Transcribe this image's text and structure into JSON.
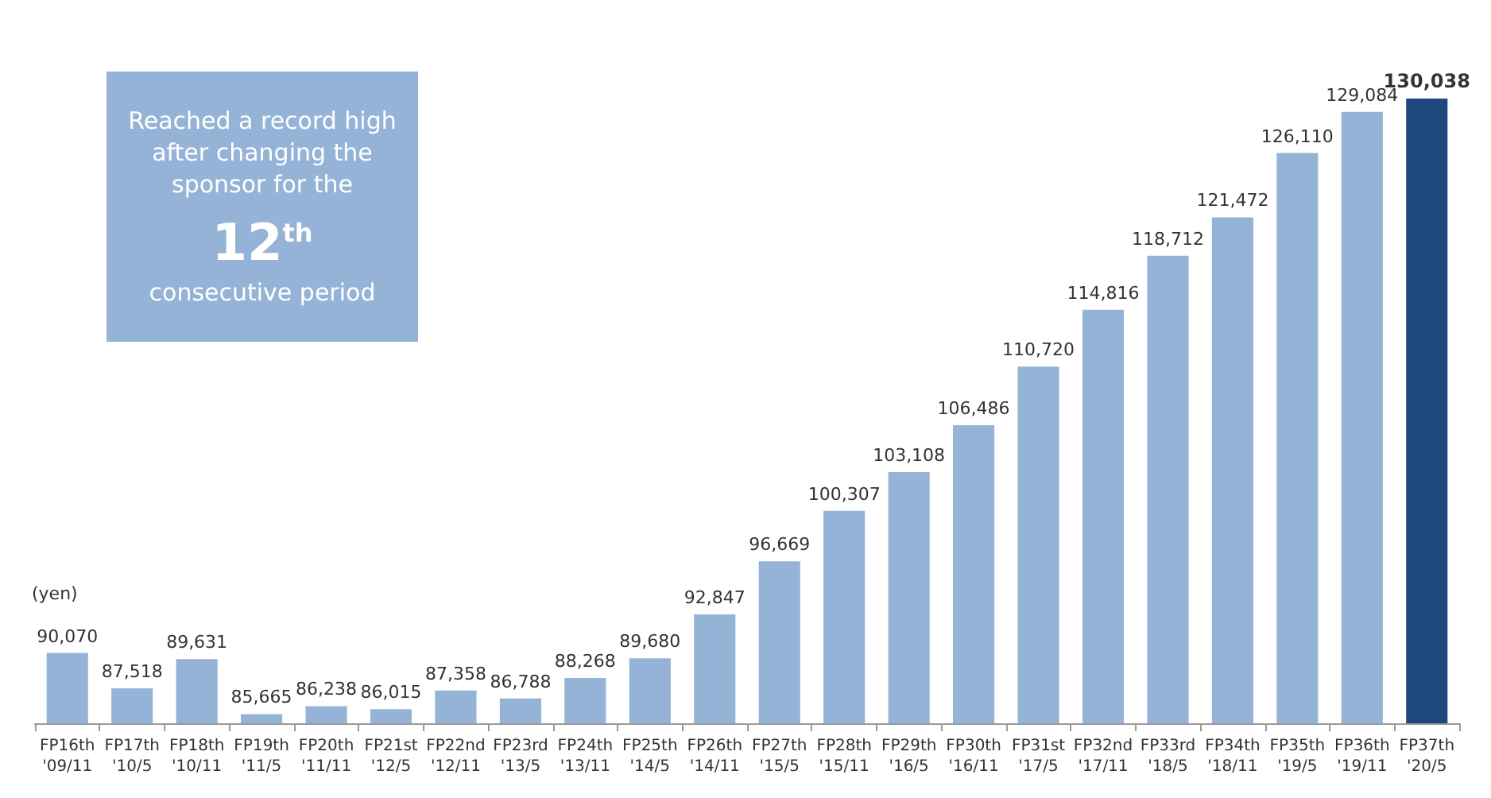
{
  "chart_data": {
    "type": "bar",
    "ylabel": "(yen)",
    "categories": [
      "FP16th\n'09/11",
      "FP17th\n'10/5",
      "FP18th\n'10/11",
      "FP19th\n'11/5",
      "FP20th\n'11/11",
      "FP21st\n'12/5",
      "FP22nd\n'12/11",
      "FP23rd\n'13/5",
      "FP24th\n'13/11",
      "FP25th\n'14/5",
      "FP26th\n'14/11",
      "FP27th\n'15/5",
      "FP28th\n'15/11",
      "FP29th\n'16/5",
      "FP30th\n'16/11",
      "FP31st\n'17/5",
      "FP32nd\n'17/11",
      "FP33rd\n'18/5",
      "FP34th\n'18/11",
      "FP35th\n'19/5",
      "FP36th\n'19/11",
      "FP37th\n'20/5"
    ],
    "values": [
      90070,
      87518,
      89631,
      85665,
      86238,
      86015,
      87358,
      86788,
      88268,
      89680,
      92847,
      96669,
      100307,
      103108,
      106486,
      110720,
      114816,
      118712,
      121472,
      126110,
      129084,
      130038
    ],
    "value_labels": [
      "90,070",
      "87,518",
      "89,631",
      "85,665",
      "86,238",
      "86,015",
      "87,358",
      "86,788",
      "88,268",
      "89,680",
      "92,847",
      "96,669",
      "100,307",
      "103,108",
      "106,486",
      "110,720",
      "114,816",
      "118,712",
      "121,472",
      "126,110",
      "129,084",
      "130,038"
    ],
    "colors": [
      "#95b3d7",
      "#95b3d7",
      "#95b3d7",
      "#95b3d7",
      "#95b3d7",
      "#95b3d7",
      "#95b3d7",
      "#95b3d7",
      "#95b3d7",
      "#95b3d7",
      "#95b3d7",
      "#95b3d7",
      "#95b3d7",
      "#95b3d7",
      "#95b3d7",
      "#95b3d7",
      "#95b3d7",
      "#95b3d7",
      "#95b3d7",
      "#95b3d7",
      "#95b3d7",
      "#1f497d"
    ],
    "ylim": [
      85000,
      130038
    ],
    "annotations": [
      "Reached a record high\nafter changing the\nsponsor for the\n12$^{th}$\nconsecutive period"
    ]
  }
}
